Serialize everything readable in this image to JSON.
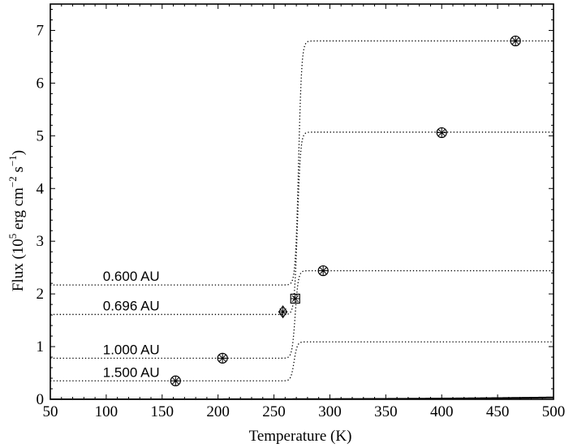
{
  "chart_data": {
    "type": "line",
    "xlabel": "Temperature (K)",
    "ylabel": {
      "prefix": "Flux (10",
      "exp1": "5",
      "mid": " erg cm",
      "exp2": "−2",
      "mid2": " s",
      "exp3": "−1",
      "suffix": ")"
    },
    "xlim": [
      50,
      500
    ],
    "ylim": [
      0,
      7.5
    ],
    "xticks": [
      50,
      100,
      150,
      200,
      250,
      300,
      350,
      400,
      450,
      500
    ],
    "yticks": [
      0,
      1,
      2,
      3,
      4,
      5,
      6,
      7
    ],
    "grid": false,
    "blackbody_curve": {
      "style": "solid",
      "color": "#000000",
      "function": "sigma*T^4",
      "scale_factor_1e5": 5.67e-13
    },
    "step_curves": [
      {
        "label": "0.600 AU",
        "low": 2.17,
        "high": 6.8,
        "transition_x": 272,
        "label_x": 97
      },
      {
        "label": "0.696 AU",
        "low": 1.61,
        "high": 5.07,
        "transition_x": 271,
        "label_x": 97
      },
      {
        "label": "1.000 AU",
        "low": 0.78,
        "high": 2.44,
        "transition_x": 269,
        "label_x": 97
      },
      {
        "label": "1.500 AU",
        "low": 0.35,
        "high": 1.09,
        "transition_x": 268,
        "label_x": 97
      }
    ],
    "markers": [
      {
        "symbol": "circle-asterisk",
        "x": 162,
        "y": 0.35
      },
      {
        "symbol": "circle-asterisk",
        "x": 204,
        "y": 0.78
      },
      {
        "symbol": "diamond-asterisk",
        "x": 258,
        "y": 1.66
      },
      {
        "symbol": "square-asterisk",
        "x": 269,
        "y": 1.91
      },
      {
        "symbol": "circle-asterisk",
        "x": 294,
        "y": 2.44
      },
      {
        "symbol": "circle-asterisk",
        "x": 400,
        "y": 5.06
      },
      {
        "symbol": "circle-asterisk",
        "x": 466,
        "y": 6.8
      }
    ]
  }
}
